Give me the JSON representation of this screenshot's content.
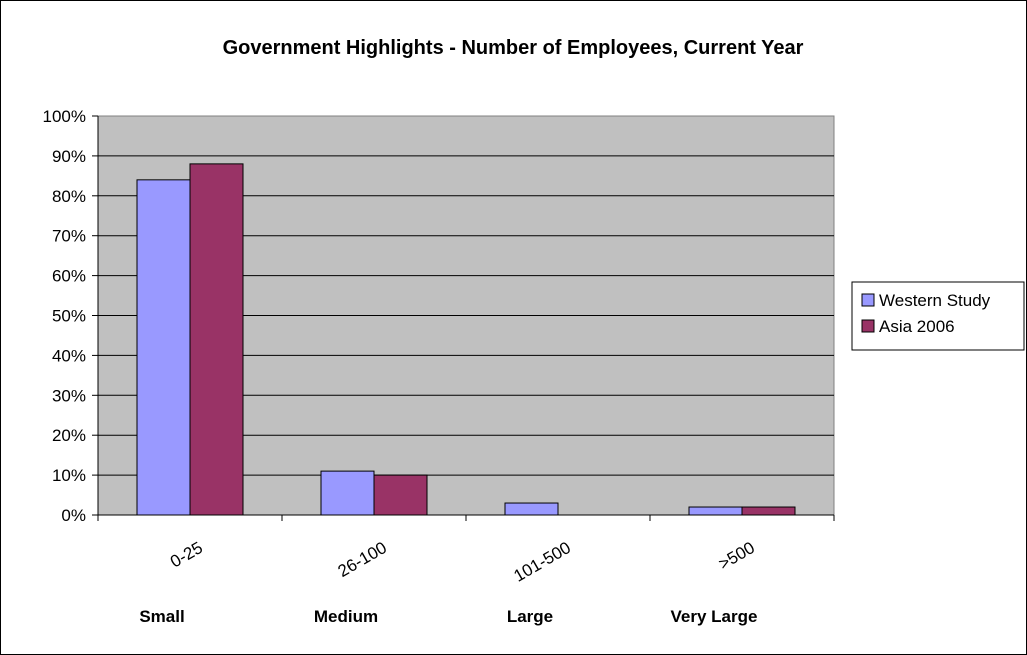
{
  "chart_data": {
    "type": "bar",
    "title": "Government Highlights - Number of Employees, Current Year",
    "categories": [
      "0-25",
      "26-100",
      "101-500",
      ">500"
    ],
    "group_labels": [
      "Small",
      "Medium",
      "Large",
      "Very Large"
    ],
    "series": [
      {
        "name": "Western Study",
        "values": [
          84,
          11,
          3,
          2
        ],
        "color": "#9999ff"
      },
      {
        "name": "Asia 2006",
        "values": [
          88,
          10,
          0,
          2
        ],
        "color": "#993366"
      }
    ],
    "ylim": [
      0,
      100
    ],
    "yticks": [
      "0%",
      "10%",
      "20%",
      "30%",
      "40%",
      "50%",
      "60%",
      "70%",
      "80%",
      "90%",
      "100%"
    ],
    "plot_background": "#c0c0c0",
    "grid": true,
    "legend_position": "right"
  }
}
